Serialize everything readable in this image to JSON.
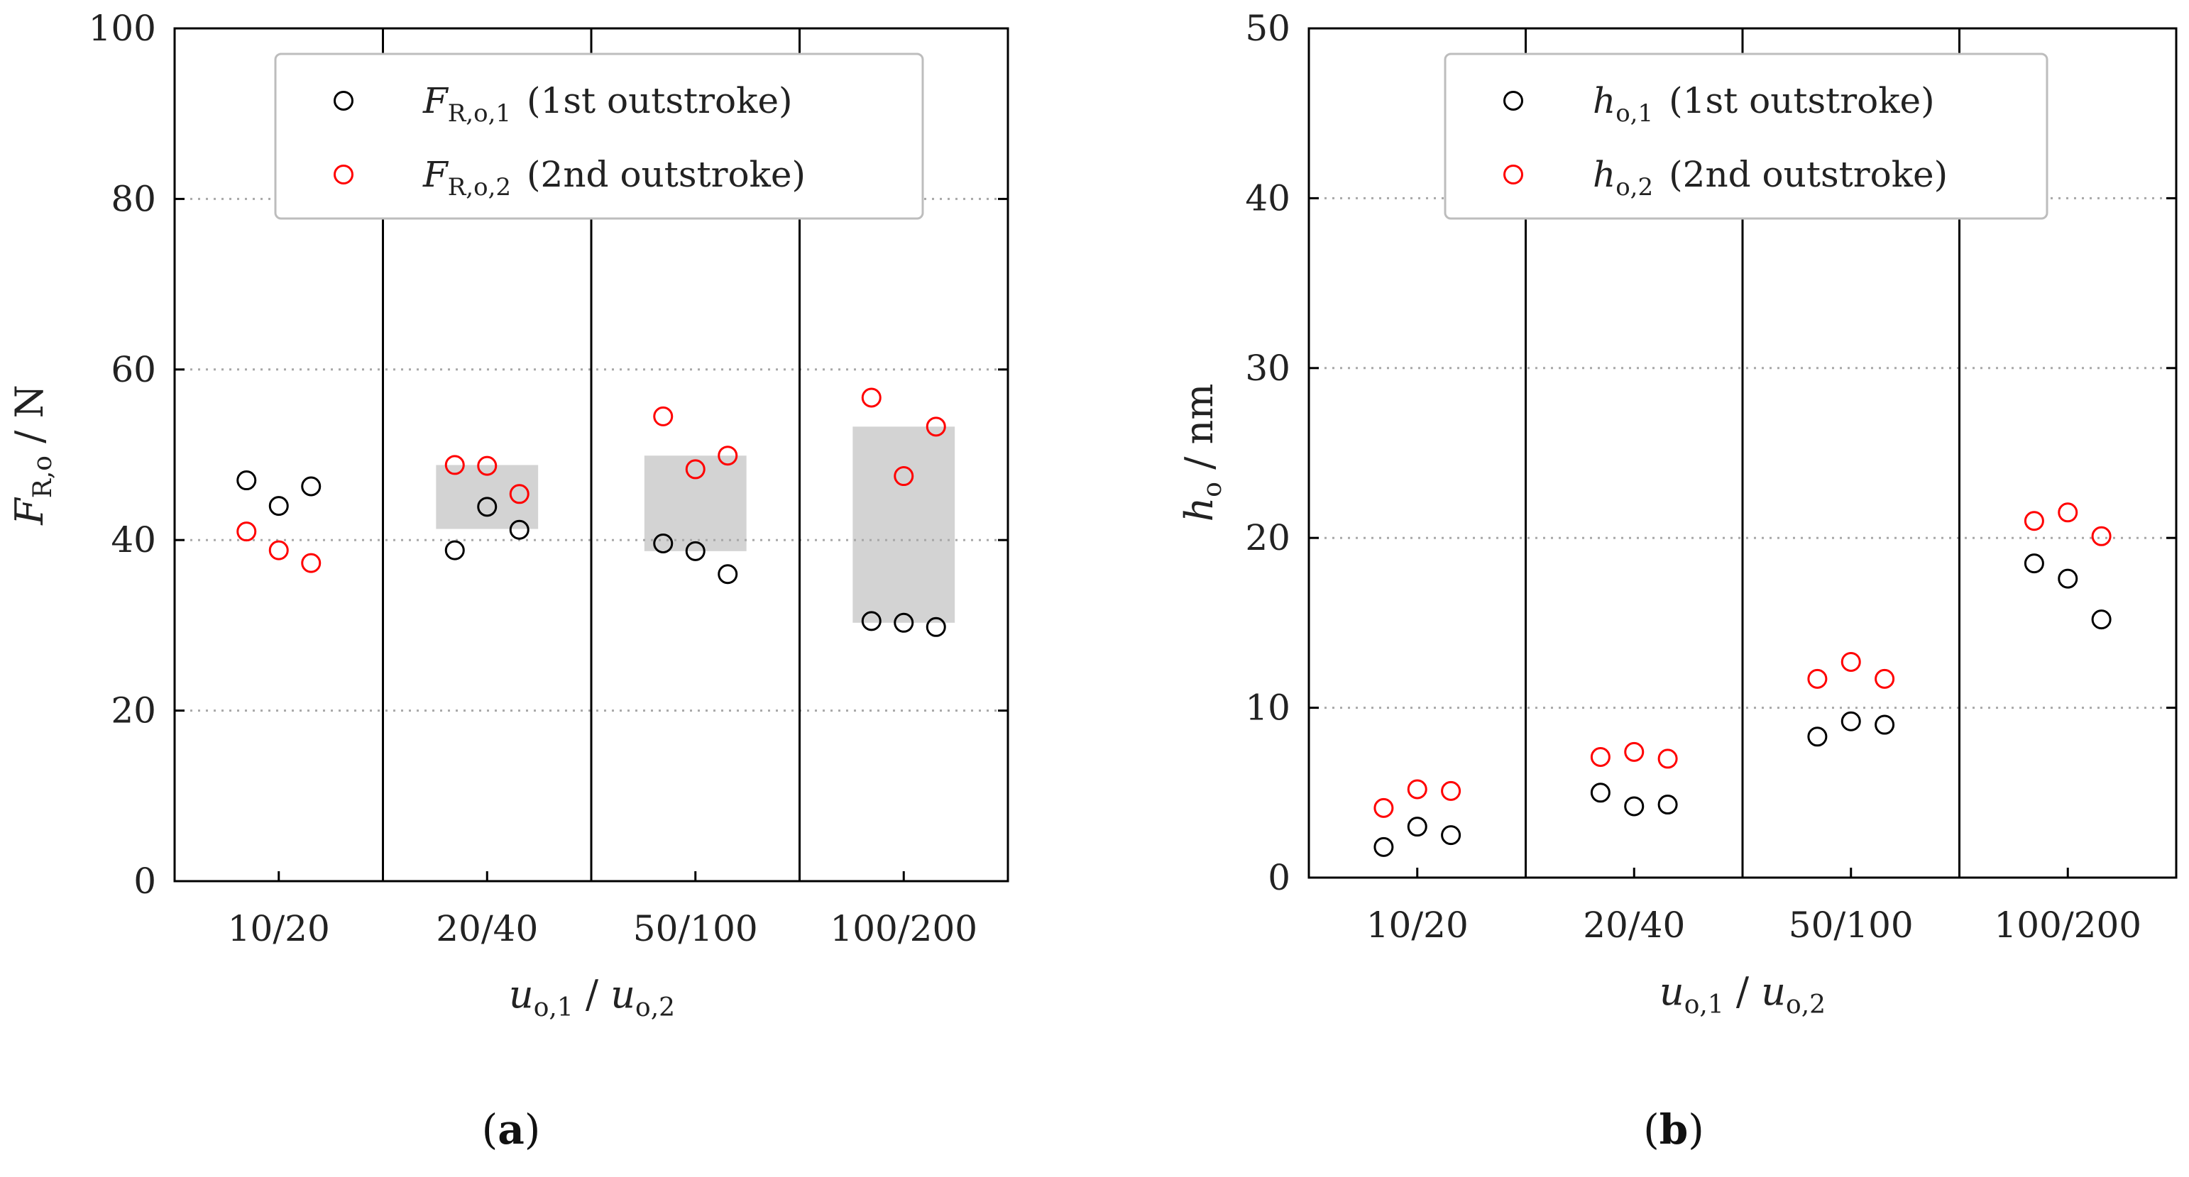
{
  "chart_data": [
    {
      "type": "scatter",
      "panel": "a",
      "ylabel": "F",
      "ylabel_sub": "R,o",
      "ylabel_unit": " / N",
      "xlabel_a": "u",
      "xlabel_a_sub": "o,1",
      "xlabel_sep": " / ",
      "xlabel_b": "u",
      "xlabel_b_sub": "o,2",
      "ylim": [
        0,
        100
      ],
      "yticks": [
        0,
        20,
        40,
        60,
        80,
        100
      ],
      "ytick_labels": [
        "0",
        "20",
        "40",
        "60",
        "80",
        "100"
      ],
      "categories": [
        "10/20",
        "20/40",
        "50/100",
        "100/200"
      ],
      "grid": "horizontal dotted",
      "legend_position": "top",
      "series": [
        {
          "name": "F",
          "name_sub": "R,o,1",
          "label": "(1st outstroke)",
          "color": "#000000",
          "values": [
            [
              47,
              44,
              46.3
            ],
            [
              38.8,
              43.9,
              41.2
            ],
            [
              39.6,
              38.7,
              36
            ],
            [
              30.5,
              30.3,
              29.8
            ]
          ]
        },
        {
          "name": "F",
          "name_sub": "R,o,2",
          "label": "(2nd outstroke)",
          "color": "#ff0000",
          "values": [
            [
              41,
              38.8,
              37.3
            ],
            [
              48.8,
              48.7,
              45.4
            ],
            [
              54.5,
              48.3,
              49.9
            ],
            [
              56.7,
              47.5,
              53.3
            ]
          ]
        }
      ],
      "shaded_ranges": [
        null,
        [
          41.3,
          48.8
        ],
        [
          38.7,
          49.9
        ],
        [
          30.3,
          53.3
        ]
      ],
      "shade_color": "#d3d3d3"
    },
    {
      "type": "scatter",
      "panel": "b",
      "ylabel": "h",
      "ylabel_sub": "o",
      "ylabel_unit": " / nm",
      "xlabel_a": "u",
      "xlabel_a_sub": "o,1",
      "xlabel_sep": " / ",
      "xlabel_b": "u",
      "xlabel_b_sub": "o,2",
      "ylim": [
        0,
        50
      ],
      "yticks": [
        0,
        10,
        20,
        30,
        40,
        50
      ],
      "ytick_labels": [
        "0",
        "10",
        "20",
        "30",
        "40",
        "50"
      ],
      "categories": [
        "10/20",
        "20/40",
        "50/100",
        "100/200"
      ],
      "grid": "horizontal dotted",
      "legend_position": "top",
      "series": [
        {
          "name": "h",
          "name_sub": "o,1",
          "label": "(1st outstroke)",
          "color": "#000000",
          "values": [
            [
              1.8,
              3,
              2.5
            ],
            [
              5,
              4.2,
              4.3
            ],
            [
              8.3,
              9.2,
              9
            ],
            [
              18.5,
              17.6,
              15.2
            ]
          ]
        },
        {
          "name": "h",
          "name_sub": "o,2",
          "label": "(2nd outstroke)",
          "color": "#ff0000",
          "values": [
            [
              4.1,
              5.2,
              5.1
            ],
            [
              7.1,
              7.4,
              7
            ],
            [
              11.7,
              12.7,
              11.7
            ],
            [
              21,
              21.5,
              20.1
            ]
          ]
        }
      ],
      "shaded_ranges": [
        null,
        null,
        null,
        null
      ],
      "shade_color": "#d3d3d3"
    }
  ],
  "panel_labels": [
    "a",
    "b"
  ]
}
